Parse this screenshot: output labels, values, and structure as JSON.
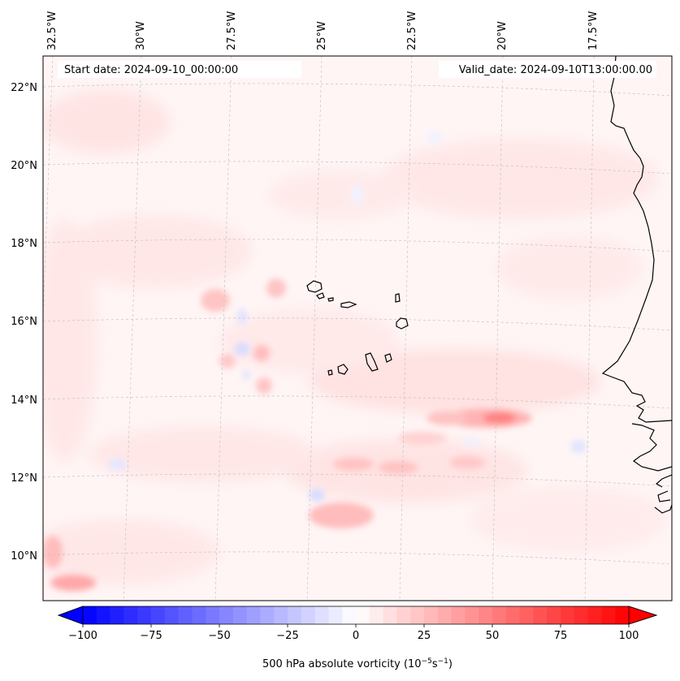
{
  "map": {
    "start_date": "Start date: 2024-09-10_00:00:00",
    "valid_date": "Valid_date: 2024-09-10T13:00:00.00",
    "lon_labels": [
      "32.5°W",
      "30°W",
      "27.5°W",
      "25°W",
      "22.5°W",
      "20°W",
      "17.5°W"
    ],
    "lat_labels": [
      "22°N",
      "20°N",
      "18°N",
      "16°N",
      "14°N",
      "12°N",
      "10°N"
    ],
    "field": "500 hPa absolute vorticity",
    "region": "Eastern tropical Atlantic, Cape Verde islands and West African coast"
  },
  "colorbar": {
    "ticks": [
      "−100",
      "−75",
      "−50",
      "−25",
      "0",
      "25",
      "50",
      "75",
      "100"
    ],
    "tick_values": [
      -100,
      -75,
      -50,
      -25,
      0,
      25,
      50,
      75,
      100
    ],
    "range": [
      -100,
      100
    ],
    "step": 5,
    "cmap": "bwr",
    "low_color": "#0000ff",
    "mid_color": "#ffffff",
    "high_color": "#ff0000",
    "label_main": "500 hPa absolute vorticity (10",
    "label_exp1": "−5",
    "label_mid": "s",
    "label_exp2": "−1",
    "label_end": ")"
  },
  "colors": {
    "coastline": "#000000",
    "gridline": "#bbbbbb",
    "background": "#fff5f5"
  }
}
